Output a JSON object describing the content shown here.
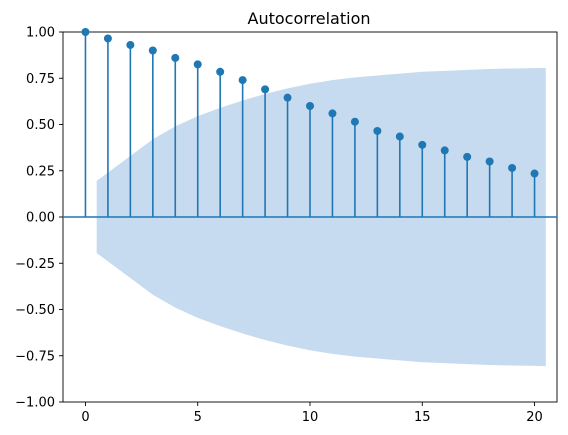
{
  "chart_data": {
    "type": "stem",
    "title": "Autocorrelation",
    "xlabel": "",
    "ylabel": "",
    "xlim": [
      -1,
      21
    ],
    "ylim": [
      -1.0,
      1.0
    ],
    "x_ticks": [
      0,
      5,
      10,
      15,
      20
    ],
    "x_tick_labels": [
      "0",
      "5",
      "10",
      "15",
      "20"
    ],
    "y_ticks": [
      -1.0,
      -0.75,
      -0.5,
      -0.25,
      0.0,
      0.25,
      0.5,
      0.75,
      1.0
    ],
    "y_tick_labels": [
      "−1.00",
      "−0.75",
      "−0.50",
      "−0.25",
      "0.00",
      "0.25",
      "0.50",
      "0.75",
      "1.00"
    ],
    "grid": false,
    "series": [
      {
        "lags": [
          0,
          1,
          2,
          3,
          4,
          5,
          6,
          7,
          8,
          9,
          10,
          11,
          12,
          13,
          14,
          15,
          16,
          17,
          18,
          19,
          20
        ],
        "values": [
          1.0,
          0.965,
          0.93,
          0.9,
          0.86,
          0.825,
          0.785,
          0.74,
          0.69,
          0.645,
          0.6,
          0.56,
          0.515,
          0.465,
          0.435,
          0.39,
          0.36,
          0.325,
          0.3,
          0.265,
          0.235
        ]
      }
    ],
    "confidence_band": {
      "x": [
        0.5,
        1,
        2,
        3,
        4,
        5,
        6,
        7,
        8,
        9,
        10,
        11,
        12,
        13,
        14,
        15,
        16,
        17,
        18,
        19,
        20,
        20.5
      ],
      "upper": [
        0.195,
        0.24,
        0.33,
        0.42,
        0.49,
        0.545,
        0.59,
        0.63,
        0.665,
        0.695,
        0.72,
        0.74,
        0.755,
        0.765,
        0.775,
        0.785,
        0.79,
        0.795,
        0.8,
        0.803,
        0.805,
        0.806
      ]
    },
    "colors": {
      "stem": "#1f77b4",
      "band": "#c6dbef",
      "axes": "#000000"
    }
  }
}
